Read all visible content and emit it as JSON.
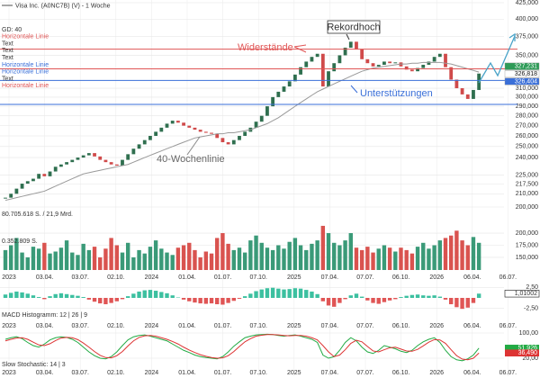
{
  "legend_items": [
    {
      "label": "GD: 40",
      "color": "#333333"
    },
    {
      "label": "Horizontale Linie",
      "color": "#e05555"
    },
    {
      "label": "Text",
      "color": "#333333"
    },
    {
      "label": "Text",
      "color": "#333333"
    },
    {
      "label": "Text",
      "color": "#333333"
    },
    {
      "label": "Horizontale Linie",
      "color": "#3a6fd8"
    },
    {
      "label": "Horizontale Linie",
      "color": "#3a6fd8"
    },
    {
      "label": "Text",
      "color": "#333333"
    },
    {
      "label": "Horizontale Linie",
      "color": "#e05555"
    }
  ],
  "x_labels": [
    "2023",
    "03.04.",
    "03.07.",
    "02.10.",
    "2024",
    "01.04.",
    "01.07.",
    "07.10.",
    "2025",
    "07.04.",
    "07.07.",
    "06.10.",
    "2026",
    "06.04.",
    "06.07."
  ],
  "chart_data": [
    {
      "type": "candlestick",
      "log_scale": true,
      "grid": true,
      "series": [
        {
          "name": "Visa Inc. (A0NC7B) (V) - 1 Woche",
          "up_color": "#2f6f4f",
          "down_color": "#d04a4a",
          "values": [
            207,
            210,
            214,
            218,
            220,
            222,
            226,
            224,
            228,
            232,
            234,
            236,
            238,
            240,
            242,
            244,
            241,
            238,
            236,
            234,
            233,
            238,
            243,
            248,
            252,
            256,
            260,
            264,
            268,
            272,
            275,
            273,
            270,
            268,
            266,
            264,
            263,
            262,
            258,
            254,
            252,
            256,
            260,
            264,
            268,
            274,
            280,
            290,
            300,
            306,
            312,
            318,
            326,
            335,
            342,
            348,
            352,
            312,
            330,
            340,
            350,
            360,
            368,
            358,
            345,
            340,
            336,
            338,
            342,
            340,
            341,
            336,
            332,
            330,
            334,
            338,
            342,
            348,
            352,
            335,
            320,
            310,
            303,
            298,
            308,
            327.231
          ]
        },
        {
          "name": "GD: 40",
          "color": "#999999",
          "values": [
            205,
            206,
            207,
            208,
            209,
            210,
            211,
            212,
            214,
            216,
            218,
            220,
            222,
            224,
            226,
            227,
            228,
            229,
            230,
            231,
            232,
            233,
            234,
            236,
            238,
            240,
            242,
            244,
            246,
            248,
            250,
            252,
            254,
            256,
            258,
            259,
            260,
            261,
            262,
            262,
            263,
            263,
            264,
            265,
            266,
            268,
            270,
            272,
            275,
            278,
            282,
            286,
            290,
            294,
            298,
            302,
            306,
            309,
            312,
            315,
            318,
            321,
            324,
            327,
            330,
            332,
            334,
            335,
            336,
            337,
            338,
            339,
            339,
            340,
            340,
            341,
            341,
            341,
            341,
            340,
            339,
            337,
            335,
            333,
            331,
            329
          ]
        }
      ],
      "ylim": [
        200,
        425
      ],
      "yticks": [
        {
          "value": 425,
          "label": "425,000"
        },
        {
          "value": 400,
          "label": "400,000"
        },
        {
          "value": 375,
          "label": "375,000"
        },
        {
          "value": 350,
          "label": "350,000"
        },
        {
          "value": 310,
          "label": "310,000"
        },
        {
          "value": 300,
          "label": "300,000"
        },
        {
          "value": 290,
          "label": "290,000"
        },
        {
          "value": 280,
          "label": "280,000"
        },
        {
          "value": 270,
          "label": "270,000"
        },
        {
          "value": 260,
          "label": "260,000"
        },
        {
          "value": 250,
          "label": "250,000"
        },
        {
          "value": 240,
          "label": "240,000"
        },
        {
          "value": 225,
          "label": "225,000"
        },
        {
          "value": 217.5,
          "label": "217,500"
        },
        {
          "value": 210,
          "label": "210,000"
        },
        {
          "value": 200,
          "label": "200,000"
        }
      ],
      "hlines": [
        {
          "value": 358,
          "color": "#e05555"
        },
        {
          "value": 333,
          "color": "#e05555"
        },
        {
          "value": 319,
          "color": "#3a6fd8"
        },
        {
          "value": 292,
          "color": "#3a6fd8"
        }
      ],
      "price_labels": [
        {
          "value": 327.231,
          "label": "327,231",
          "color": "#2e9b57"
        },
        {
          "value": 326.818,
          "label": "326,818",
          "color": "#ffffff"
        },
        {
          "value": 326.404,
          "label": "326,404",
          "color": "#3a6fd8"
        }
      ],
      "annotations": [
        "Rekordhoch",
        "Widerstände",
        "Unterstützungen",
        "40-Wochenlinie"
      ]
    },
    {
      "type": "bar",
      "title": "80.705.618 S. / 21,9 Mrd.",
      "subtitle": "0.352.809 S.",
      "up_color": "#3a9a78",
      "down_color": "#d9534f",
      "values": [
        165,
        175,
        190,
        160,
        150,
        172,
        168,
        180,
        158,
        162,
        170,
        185,
        160,
        155,
        178,
        165,
        172,
        150,
        168,
        190,
        175,
        160,
        180,
        150,
        165,
        158,
        172,
        185,
        168,
        160,
        155,
        170,
        175,
        180,
        165,
        150,
        162,
        158,
        190,
        200,
        178,
        165,
        170,
        160,
        185,
        195,
        180,
        170,
        165,
        175,
        168,
        182,
        190,
        175,
        165,
        178,
        185,
        215,
        200,
        180,
        175,
        185,
        200,
        170,
        165,
        172,
        160,
        168,
        175,
        170,
        162,
        170,
        165,
        158,
        172,
        180,
        168,
        175,
        185,
        190,
        195,
        205,
        185,
        175,
        192,
        180
      ],
      "ylim": [
        124,
        226
      ],
      "yticks": [
        {
          "value": 200,
          "label": "200,000"
        },
        {
          "value": 175,
          "label": "175,000"
        },
        {
          "value": 150,
          "label": "150,000"
        }
      ]
    },
    {
      "type": "bar",
      "title": "MACD Histogramm: 12 | 26 | 9",
      "up_color": "#3cc0a0",
      "down_color": "#e05555",
      "values": [
        0.8,
        1.2,
        1.5,
        1.3,
        1.0,
        0.6,
        0.2,
        -0.3,
        0.4,
        0.9,
        1.1,
        0.9,
        0.7,
        0.5,
        0.2,
        -0.4,
        -0.9,
        -1.3,
        -1.5,
        -1.2,
        -0.8,
        -0.3,
        0.4,
        1.0,
        1.5,
        1.8,
        1.9,
        1.7,
        1.4,
        1.1,
        0.6,
        0.1,
        -0.4,
        -0.8,
        -1.1,
        -1.3,
        -1.4,
        -1.3,
        -1.5,
        -1.6,
        -1.2,
        -0.7,
        -0.2,
        0.4,
        1.0,
        1.6,
        2.0,
        2.3,
        2.4,
        2.2,
        2.0,
        2.1,
        2.3,
        2.2,
        1.9,
        1.5,
        0.9,
        -0.8,
        -1.8,
        -2.1,
        -1.2,
        -0.3,
        0.6,
        1.0,
        0.3,
        -0.6,
        -1.2,
        -1.4,
        -1.0,
        -0.6,
        -0.3,
        0.2,
        0.5,
        0.7,
        0.8,
        0.6,
        0.5,
        0.6,
        0.3,
        -0.4,
        -1.5,
        -2.2,
        -2.6,
        -2.3,
        -1.2,
        1.01002
      ],
      "value_labels_last": {
        "value": 1.01002,
        "label": "1,01002",
        "color": "#111111"
      },
      "ylim": [
        -3.2,
        3.2
      ],
      "yticks": [
        {
          "value": 2.5,
          "label": "2,50"
        },
        {
          "value": -2.5,
          "label": "-2,50"
        }
      ]
    },
    {
      "type": "line",
      "title": "Slow Stochastic: 14 | 3",
      "series": [
        {
          "color": "#22aa44",
          "values": [
            80,
            85,
            88,
            82,
            70,
            60,
            55,
            65,
            78,
            85,
            88,
            86,
            80,
            70,
            55,
            40,
            28,
            20,
            18,
            25,
            40,
            60,
            78,
            88,
            92,
            94,
            90,
            85,
            80,
            75,
            65,
            55,
            45,
            38,
            30,
            25,
            22,
            20,
            18,
            25,
            40,
            58,
            72,
            85,
            90,
            94,
            95,
            96,
            95,
            92,
            90,
            92,
            94,
            90,
            85,
            80,
            70,
            30,
            20,
            25,
            45,
            70,
            85,
            75,
            55,
            40,
            35,
            45,
            60,
            55,
            50,
            42,
            38,
            45,
            60,
            72,
            80,
            85,
            70,
            45,
            25,
            15,
            12,
            18,
            30,
            51.926
          ]
        },
        {
          "color": "#dd3333",
          "values": [
            75,
            80,
            84,
            85,
            80,
            71,
            62,
            60,
            66,
            76,
            84,
            86,
            85,
            79,
            68,
            55,
            41,
            29,
            22,
            21,
            28,
            41,
            59,
            75,
            86,
            91,
            92,
            90,
            85,
            80,
            73,
            65,
            55,
            46,
            38,
            31,
            26,
            22,
            20,
            21,
            28,
            41,
            57,
            72,
            82,
            90,
            93,
            95,
            95,
            94,
            92,
            91,
            92,
            92,
            90,
            85,
            78,
            60,
            40,
            25,
            30,
            47,
            67,
            77,
            72,
            57,
            43,
            40,
            47,
            53,
            55,
            49,
            43,
            42,
            48,
            59,
            71,
            79,
            78,
            67,
            47,
            28,
            17,
            15,
            20,
            36.49
          ]
        }
      ],
      "last_labels": [
        {
          "value": 51.926,
          "label": "51,926",
          "color": "#22aa44"
        },
        {
          "value": 36.49,
          "label": "36,490",
          "color": "#dd3333"
        }
      ],
      "ylim": [
        0,
        100
      ],
      "yticks": [
        {
          "value": 100,
          "label": "100,00"
        },
        {
          "value": 20,
          "label": "20,00"
        }
      ]
    }
  ]
}
